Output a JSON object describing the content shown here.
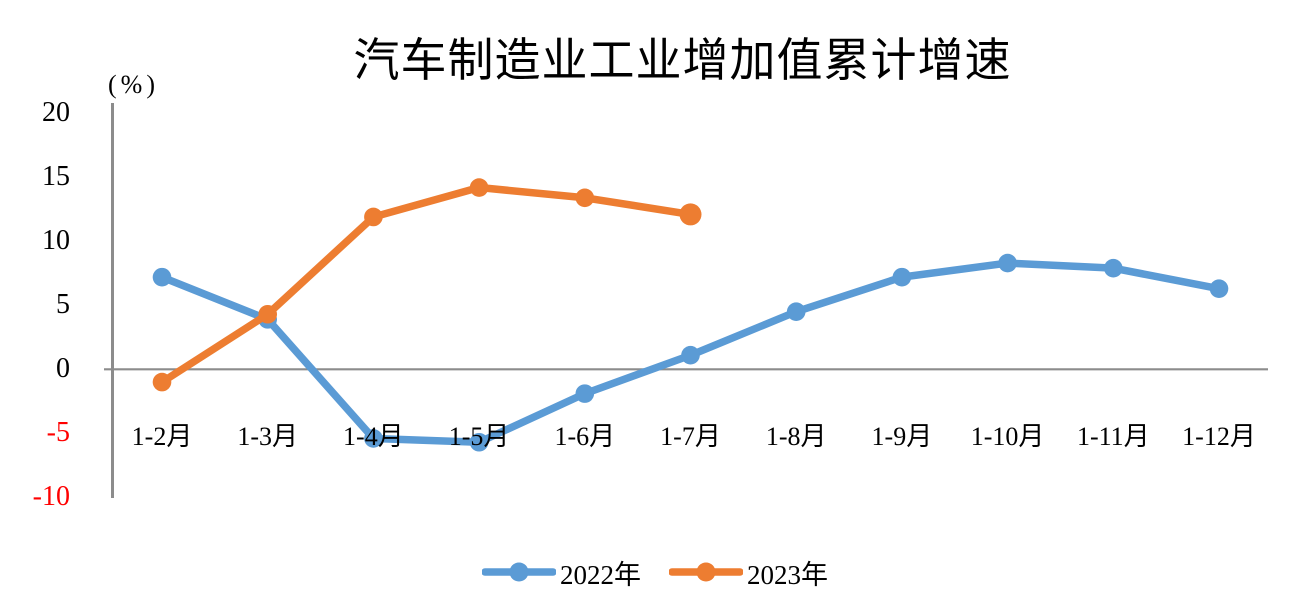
{
  "chart_data": {
    "type": "line",
    "title": "汽车制造业工业增加值累计增速",
    "ylabel": "(%)",
    "ylim": [
      -10,
      20
    ],
    "yticks": [
      20,
      15,
      10,
      5,
      0,
      -5,
      -10
    ],
    "negative_tick_color": "#ff0000",
    "tick_color": "#000000",
    "axis_color": "#8c8c8c",
    "grid": false,
    "legend_position": "bottom",
    "categories": [
      "1-2月",
      "1-3月",
      "1-4月",
      "1-5月",
      "1-6月",
      "1-7月",
      "1-8月",
      "1-9月",
      "1-10月",
      "1-11月",
      "1-12月"
    ],
    "series": [
      {
        "name": "2022年",
        "color": "#5b9bd5",
        "values": [
          7.2,
          3.9,
          -5.4,
          -5.7,
          -1.9,
          1.1,
          4.5,
          7.2,
          8.3,
          7.9,
          6.3
        ]
      },
      {
        "name": "2023年",
        "color": "#ed7d31",
        "values": [
          -1.0,
          4.3,
          11.9,
          14.2,
          13.4,
          12.1
        ]
      }
    ]
  }
}
